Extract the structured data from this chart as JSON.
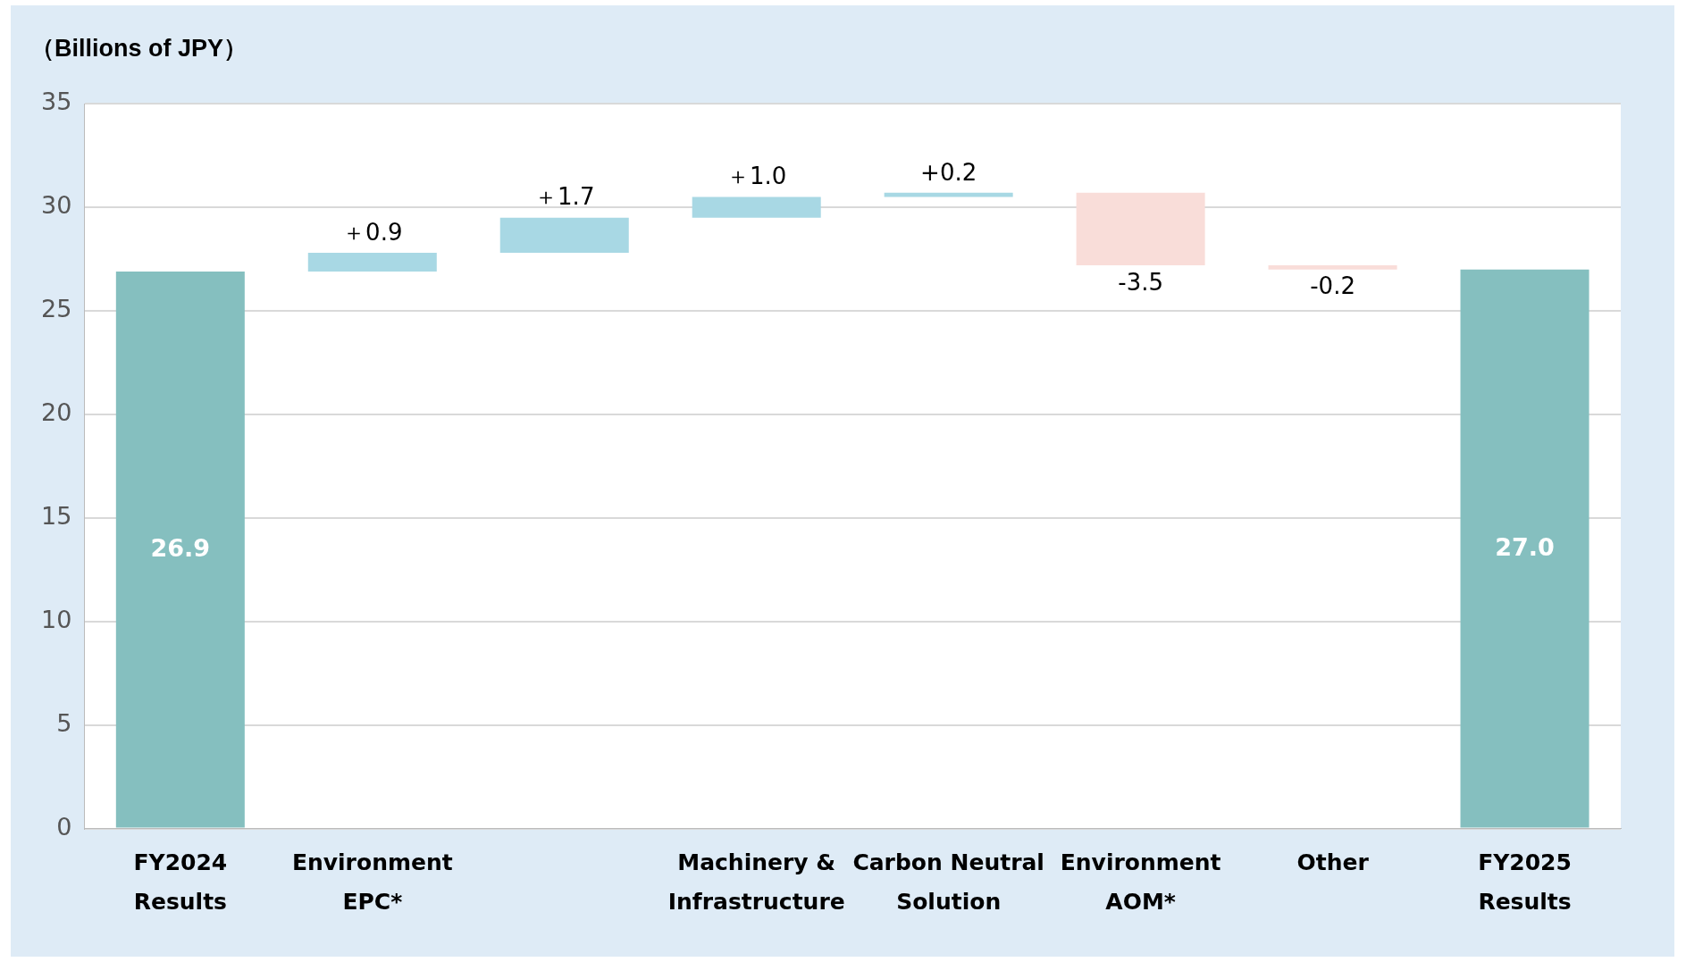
{
  "chart_data": {
    "type": "bar",
    "title": "（Billions of JPY）",
    "categories": [
      "FY2024\nResults",
      "Environment\nEPC*",
      null,
      "Machinery &\nInfrastructure",
      "Carbon Neutral\nSolution",
      "Environment\nAOM*",
      "Other",
      "FY2025\nResults"
    ],
    "values": [
      26.9,
      0.9,
      1.7,
      1.0,
      0.2,
      -3.5,
      -0.2,
      27.0
    ],
    "base": [
      0,
      26.9,
      27.8,
      29.5,
      30.5,
      30.7,
      27.2,
      0
    ],
    "colors": [
      "#85bfbf",
      "#a8d8e4",
      "#a8d8e4",
      "#a8d8e4",
      "#a8d8e4",
      "#f9ddd9",
      "#f9ddd9",
      "#85bfbf"
    ],
    "value_labels": [
      "26.9",
      "＋0.9",
      "＋1.7",
      "＋1.0",
      "+0.2",
      "-3.5",
      "-0.2",
      "27.0"
    ],
    "ylim": [
      0,
      35
    ],
    "yticks": [
      0,
      5,
      10,
      15,
      20,
      25,
      30,
      35
    ],
    "grid": "y",
    "legend": false
  }
}
